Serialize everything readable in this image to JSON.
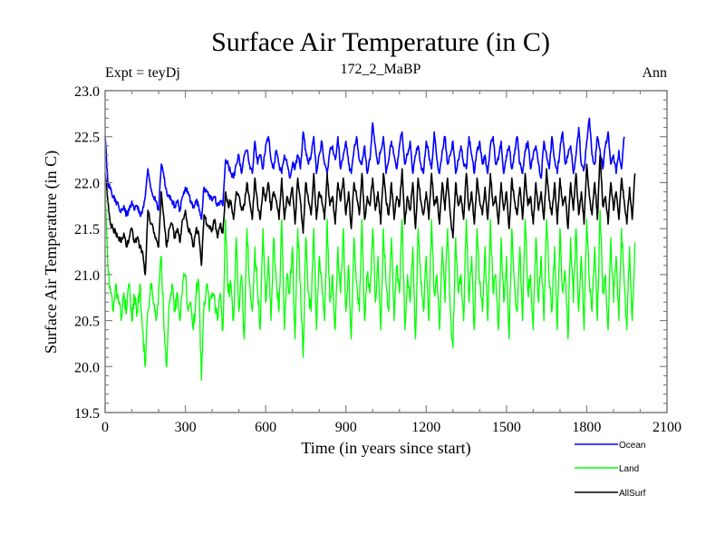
{
  "chart_data": {
    "type": "line",
    "title": "Surface Air Temperature (in C)",
    "subtitle_left": "Expt = teyDj",
    "subtitle_center": "172_2_MaBP",
    "subtitle_right": "Ann",
    "xlabel": "Time (in years since start)",
    "ylabel": "Surface Air Temperature (in C)",
    "xlim": [
      0,
      2100
    ],
    "ylim": [
      19.5,
      23.0
    ],
    "xticks": [
      "0",
      "300",
      "600",
      "900",
      "1200",
      "1500",
      "1800",
      "2100"
    ],
    "xtick_values": [
      0,
      300,
      600,
      900,
      1200,
      1500,
      1800,
      2100
    ],
    "yticks": [
      "19.5",
      "20.0",
      "20.5",
      "21.0",
      "21.5",
      "22.0",
      "22.5",
      "23.0"
    ],
    "ytick_values": [
      19.5,
      20.0,
      20.5,
      21.0,
      21.5,
      22.0,
      22.5,
      23.0
    ],
    "grid": false,
    "legend_position": "below-right",
    "x_step": 10,
    "x_start": 0,
    "series": [
      {
        "name": "Ocean",
        "color": "#0000ff",
        "values": [
          22.5,
          22.0,
          21.95,
          21.85,
          21.8,
          21.75,
          21.7,
          21.75,
          21.65,
          21.7,
          21.8,
          21.7,
          21.75,
          21.65,
          21.7,
          21.85,
          22.15,
          21.95,
          21.85,
          21.8,
          21.7,
          22.2,
          22.05,
          21.9,
          21.85,
          21.8,
          21.75,
          21.8,
          21.7,
          21.85,
          21.95,
          21.9,
          21.8,
          21.75,
          21.8,
          21.75,
          21.6,
          21.95,
          21.9,
          21.85,
          21.8,
          21.85,
          21.75,
          21.8,
          21.75,
          22.25,
          22.2,
          22.1,
          22.05,
          22.2,
          22.3,
          22.1,
          22.3,
          22.35,
          22.2,
          22.1,
          22.45,
          22.2,
          22.3,
          22.15,
          22.4,
          22.5,
          22.25,
          22.15,
          22.35,
          22.2,
          22.1,
          22.3,
          22.2,
          22.05,
          22.2,
          22.15,
          22.3,
          22.15,
          22.55,
          22.35,
          22.2,
          22.3,
          22.5,
          22.1,
          22.3,
          22.45,
          22.2,
          22.1,
          22.35,
          22.4,
          22.25,
          22.5,
          22.15,
          22.3,
          22.45,
          22.2,
          22.1,
          22.35,
          22.5,
          22.25,
          22.2,
          22.4,
          22.1,
          22.25,
          22.65,
          22.4,
          22.2,
          22.35,
          22.5,
          22.1,
          22.25,
          22.45,
          22.3,
          22.15,
          22.4,
          22.55,
          22.2,
          22.3,
          22.45,
          22.1,
          22.3,
          22.4,
          22.2,
          22.1,
          22.45,
          22.3,
          22.15,
          22.55,
          22.25,
          22.1,
          22.35,
          22.5,
          22.2,
          22.3,
          22.45,
          22.1,
          22.25,
          22.4,
          22.2,
          22.15,
          22.5,
          22.3,
          22.1,
          22.35,
          22.45,
          22.2,
          22.3,
          22.1,
          22.4,
          22.5,
          22.2,
          22.25,
          22.45,
          22.1,
          22.3,
          22.4,
          22.15,
          22.3,
          22.5,
          22.2,
          22.1,
          22.35,
          22.45,
          22.15,
          22.3,
          22.4,
          22.2,
          22.05,
          22.45,
          22.3,
          22.15,
          22.5,
          22.25,
          22.1,
          22.35,
          22.55,
          22.2,
          22.3,
          22.4,
          22.1,
          22.3,
          22.6,
          22.2,
          22.15,
          22.45,
          22.7,
          22.3,
          22.2,
          22.5,
          22.35,
          22.15,
          22.4,
          22.55,
          22.2,
          22.3,
          22.1,
          22.35,
          22.15,
          22.5
        ]
      },
      {
        "name": "Land",
        "color": "#00ff00",
        "values": [
          22.0,
          21.1,
          20.8,
          20.6,
          20.9,
          20.7,
          20.5,
          20.8,
          20.6,
          20.9,
          20.5,
          20.75,
          20.6,
          20.9,
          20.4,
          20.0,
          20.6,
          20.9,
          20.7,
          20.5,
          20.8,
          21.2,
          20.4,
          20.0,
          20.7,
          20.9,
          20.6,
          20.8,
          20.5,
          20.9,
          21.0,
          20.6,
          20.7,
          20.4,
          20.8,
          20.9,
          19.85,
          20.7,
          20.9,
          20.6,
          20.8,
          20.7,
          20.5,
          20.8,
          20.4,
          21.6,
          20.8,
          20.9,
          20.5,
          21.4,
          20.6,
          21.0,
          20.3,
          21.5,
          20.9,
          20.6,
          21.3,
          20.8,
          20.4,
          21.5,
          20.7,
          21.2,
          20.5,
          21.4,
          20.9,
          20.6,
          21.6,
          20.4,
          21.0,
          20.8,
          21.3,
          20.3,
          21.5,
          20.9,
          20.1,
          21.4,
          20.8,
          20.6,
          21.5,
          20.4,
          21.2,
          20.9,
          20.5,
          21.6,
          20.7,
          21.0,
          20.4,
          21.3,
          20.8,
          21.5,
          20.6,
          21.1,
          20.3,
          21.4,
          20.9,
          20.6,
          21.6,
          20.5,
          21.0,
          20.8,
          21.5,
          20.7,
          21.2,
          20.4,
          21.5,
          20.9,
          20.6,
          21.4,
          20.5,
          21.1,
          20.8,
          21.6,
          20.4,
          21.0,
          20.7,
          21.3,
          20.3,
          21.5,
          20.9,
          20.6,
          21.2,
          20.5,
          21.6,
          20.8,
          21.0,
          20.4,
          21.3,
          20.7,
          21.5,
          20.6,
          20.2,
          21.4,
          20.8,
          21.0,
          20.5,
          21.6,
          20.7,
          21.2,
          20.4,
          21.5,
          20.9,
          20.6,
          21.3,
          20.5,
          21.6,
          20.8,
          21.0,
          20.4,
          21.4,
          20.7,
          21.2,
          20.3,
          21.5,
          20.9,
          20.6,
          21.3,
          20.5,
          21.6,
          20.8,
          21.0,
          20.4,
          21.4,
          20.7,
          21.2,
          20.5,
          21.6,
          20.9,
          20.6,
          21.3,
          20.4,
          21.5,
          20.8,
          21.0,
          20.3,
          21.4,
          20.7,
          21.5,
          20.6,
          21.2,
          20.4,
          21.6,
          20.9,
          20.6,
          21.3,
          20.5,
          21.7,
          20.8,
          21.0,
          20.4,
          21.4,
          20.7,
          21.2,
          20.5,
          21.5,
          20.9,
          20.4,
          21.3,
          20.5,
          21.35
        ]
      },
      {
        "name": "AllSurf",
        "color": "#000000",
        "values": [
          22.1,
          21.8,
          21.55,
          21.5,
          21.45,
          21.4,
          21.35,
          21.45,
          21.3,
          21.4,
          21.5,
          21.35,
          21.4,
          21.3,
          21.25,
          21.0,
          21.7,
          21.55,
          21.5,
          21.4,
          21.3,
          21.9,
          21.6,
          21.3,
          21.5,
          21.55,
          21.4,
          21.5,
          21.35,
          21.6,
          21.7,
          21.5,
          21.45,
          21.3,
          21.5,
          21.45,
          21.1,
          21.65,
          21.55,
          21.5,
          21.5,
          21.6,
          21.4,
          21.55,
          21.45,
          21.9,
          21.75,
          21.8,
          21.6,
          21.9,
          21.85,
          21.7,
          21.75,
          22.0,
          21.8,
          21.6,
          22.05,
          21.75,
          21.6,
          21.95,
          21.8,
          22.0,
          21.7,
          21.9,
          21.8,
          21.6,
          22.05,
          21.6,
          21.85,
          21.75,
          21.95,
          21.55,
          22.05,
          21.8,
          21.45,
          22.0,
          21.8,
          21.65,
          22.1,
          21.6,
          21.9,
          21.8,
          21.6,
          22.1,
          21.75,
          21.85,
          21.55,
          22.0,
          21.8,
          22.05,
          21.65,
          21.9,
          21.5,
          22.0,
          21.85,
          21.65,
          22.1,
          21.6,
          21.85,
          21.75,
          22.05,
          21.7,
          21.9,
          21.55,
          22.1,
          21.8,
          21.65,
          22.0,
          21.6,
          21.85,
          21.75,
          22.15,
          21.55,
          21.85,
          21.7,
          22.0,
          21.5,
          22.05,
          21.8,
          21.65,
          21.9,
          21.6,
          22.1,
          21.75,
          21.85,
          21.55,
          22.0,
          21.7,
          22.05,
          21.65,
          21.4,
          22.0,
          21.75,
          21.85,
          21.6,
          22.1,
          21.7,
          21.9,
          21.55,
          22.05,
          21.8,
          21.65,
          21.95,
          21.6,
          22.1,
          21.75,
          21.85,
          21.55,
          22.0,
          21.7,
          21.9,
          21.5,
          22.05,
          21.8,
          21.65,
          21.95,
          21.6,
          22.1,
          21.75,
          21.85,
          21.55,
          22.0,
          21.7,
          21.9,
          21.6,
          22.15,
          21.8,
          21.65,
          22.0,
          21.55,
          22.05,
          21.75,
          21.85,
          21.5,
          22.0,
          21.7,
          22.1,
          21.65,
          21.9,
          21.55,
          22.2,
          21.85,
          21.65,
          22.0,
          21.6,
          22.3,
          21.75,
          21.85,
          21.55,
          22.0,
          21.7,
          21.9,
          21.6,
          22.05,
          21.8,
          21.55,
          21.95,
          21.6,
          22.1
        ]
      }
    ]
  }
}
